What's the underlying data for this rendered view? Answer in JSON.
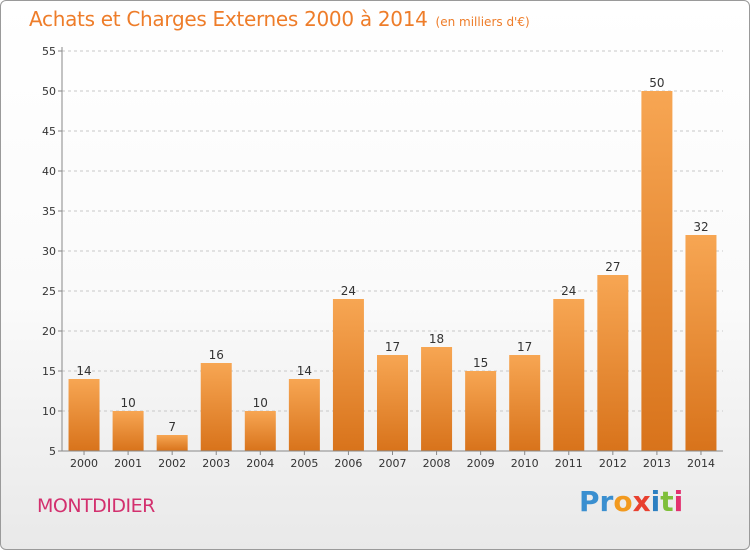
{
  "chart_data": {
    "type": "bar",
    "title": "Achats et Charges Externes 2000 à 2014",
    "subtitle": "(en milliers d'€)",
    "categories": [
      "2000",
      "2001",
      "2002",
      "2003",
      "2004",
      "2005",
      "2006",
      "2007",
      "2008",
      "2009",
      "2010",
      "2011",
      "2012",
      "2013",
      "2014"
    ],
    "values": [
      14,
      10,
      7,
      16,
      10,
      14,
      24,
      17,
      18,
      15,
      17,
      24,
      27,
      50,
      32
    ],
    "ylim": [
      5,
      55
    ],
    "yticks": [
      5,
      10,
      15,
      20,
      25,
      30,
      35,
      40,
      45,
      50,
      55
    ],
    "grid": "horizontal dashed",
    "xlabel": "",
    "ylabel": ""
  },
  "footer": {
    "city": "MONTDIDIER",
    "logo_parts": [
      "Pr",
      "o",
      "x",
      "i",
      "t",
      "i"
    ]
  },
  "colors": {
    "title": "#ee7d2a",
    "city": "#d3306e",
    "bar_light": "#f7a653",
    "bar_dark": "#d8731b"
  }
}
